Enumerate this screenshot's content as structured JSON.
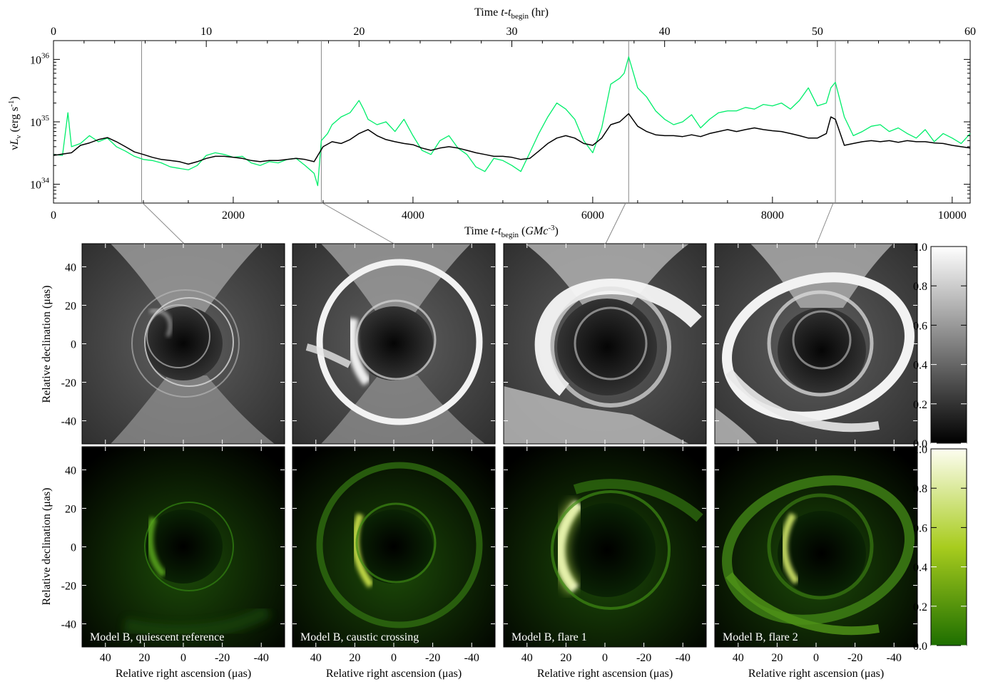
{
  "lightcurve": {
    "xlabel_bottom": {
      "pre": "Time ",
      "t": "t",
      "dash": "-",
      "tb": "t",
      "sub": "begin",
      "post": " (",
      "unit": "GMc",
      "sup": "-3",
      "close": ")"
    },
    "xlabel_top": {
      "pre": "Time ",
      "t": "t",
      "dash": "-",
      "tb": "t",
      "sub": "begin",
      "post": " (hr)"
    },
    "ylabel": {
      "nu": "ν",
      "L": "L",
      "sub": "ν",
      "unit": " (erg s",
      "sup": "-1",
      "close": ")"
    },
    "bottom_ticks": [
      "0",
      "2000",
      "4000",
      "6000",
      "8000",
      "10000"
    ],
    "top_ticks": [
      "0",
      "10",
      "20",
      "30",
      "40",
      "50",
      "60"
    ],
    "ytick_labels": [
      {
        "base": "10",
        "exp": "34"
      },
      {
        "base": "10",
        "exp": "35"
      },
      {
        "base": "10",
        "exp": "36"
      }
    ]
  },
  "panels": {
    "titles": [
      "Model B, quiescent reference",
      "Model B, caustic crossing",
      "Model B, flare 1",
      "Model B, flare 2"
    ],
    "ylabel": "Relative declination (μas)",
    "xlabel": "Relative right ascension (μas)",
    "ticks": [
      "40",
      "20",
      "0",
      "-20",
      "-40"
    ]
  },
  "colorbars": {
    "ticks": [
      "0.0",
      "0.2",
      "0.4",
      "0.6",
      "0.8",
      "1.0"
    ],
    "gray": {
      "low": "#000000",
      "high": "#ffffff"
    },
    "green": {
      "low": "#1e6e00",
      "mid": "#a8cc1e",
      "high": "#fdfdf0"
    }
  },
  "colors": {
    "green_curve": "#00ee6a",
    "black_curve": "#000000",
    "marker_line": "#888888"
  },
  "chart_data": {
    "type": "line",
    "xlabel": "Time t-t_begin (GMc^-3)",
    "x2label": "Time t-t_begin (hr)",
    "ylabel": "νL_ν (erg s^-1)",
    "xlim": [
      0,
      10200
    ],
    "x2lim": [
      0,
      60
    ],
    "ylim": [
      5e+33,
      2e+36
    ],
    "yscale": "log",
    "markers": [
      980,
      2980,
      6400,
      8700
    ],
    "series": [
      {
        "color": "#00ee6a",
        "x": [
          0,
          100,
          160,
          200,
          300,
          400,
          500,
          600,
          700,
          800,
          900,
          1000,
          1100,
          1200,
          1300,
          1400,
          1500,
          1600,
          1700,
          1800,
          1900,
          2000,
          2100,
          2200,
          2300,
          2400,
          2500,
          2600,
          2700,
          2800,
          2900,
          2940,
          2980,
          3050,
          3100,
          3200,
          3300,
          3400,
          3450,
          3500,
          3600,
          3700,
          3800,
          3900,
          4000,
          4100,
          4200,
          4300,
          4400,
          4500,
          4600,
          4700,
          4800,
          4900,
          5000,
          5100,
          5200,
          5300,
          5400,
          5500,
          5600,
          5700,
          5800,
          5900,
          6000,
          6100,
          6200,
          6300,
          6350,
          6400,
          6500,
          6600,
          6700,
          6800,
          6900,
          7000,
          7100,
          7200,
          7300,
          7400,
          7500,
          7600,
          7700,
          7800,
          7900,
          8000,
          8100,
          8200,
          8300,
          8400,
          8500,
          8600,
          8650,
          8700,
          8800,
          8900,
          9000,
          9100,
          9200,
          9300,
          9400,
          9500,
          9600,
          9700,
          9800,
          9900,
          10000,
          10100,
          10200
        ],
        "y": [
          3e+34,
          2.9e+34,
          1.4e+35,
          4e+34,
          4.5e+34,
          6e+34,
          4.8e+34,
          5.5e+34,
          4e+34,
          3.4e+34,
          2.8e+34,
          2.5e+34,
          2.4e+34,
          2.2e+34,
          1.9e+34,
          1.8e+34,
          1.7e+34,
          2e+34,
          2.9e+34,
          3.2e+34,
          3e+34,
          2.7e+34,
          2.8e+34,
          2.2e+34,
          2e+34,
          2.3e+34,
          2.2e+34,
          2.5e+34,
          2.6e+34,
          2e+34,
          1.5e+34,
          9.5e+33,
          5e+34,
          6.5e+34,
          9e+34,
          1.2e+35,
          1.4e+35,
          2.2e+35,
          1.6e+35,
          1.1e+35,
          9e+34,
          1e+35,
          7e+34,
          1.1e+35,
          6e+34,
          3.5e+34,
          3e+34,
          5e+34,
          6e+34,
          3.8e+34,
          3e+34,
          1.9e+34,
          1.6e+34,
          2.6e+34,
          2.4e+34,
          2e+34,
          1.6e+34,
          3.2e+34,
          6.5e+34,
          1.2e+35,
          2e+35,
          1.6e+35,
          1.1e+35,
          5e+34,
          3.2e+34,
          8e+34,
          4e+35,
          5e+35,
          6e+35,
          1.1e+36,
          3.5e+35,
          2.5e+35,
          1.5e+35,
          1.1e+35,
          9e+34,
          1e+35,
          1.3e+35,
          8e+34,
          1.1e+35,
          1.4e+35,
          1.5e+35,
          1.5e+35,
          1.7e+35,
          1.6e+35,
          1.9e+35,
          1.8e+35,
          2e+35,
          1.6e+35,
          2.2e+35,
          3.5e+35,
          1.8e+35,
          2e+35,
          3.5e+35,
          4.3e+35,
          1.2e+35,
          6e+34,
          7e+34,
          8.5e+34,
          9e+34,
          7e+34,
          8e+34,
          6.5e+34,
          5.5e+34,
          7.5e+34,
          4.8e+34,
          6.5e+34,
          5.5e+34,
          4.5e+34,
          6.5e+34
        ]
      },
      {
        "color": "#000000",
        "x": [
          0,
          200,
          300,
          400,
          500,
          600,
          700,
          800,
          900,
          1000,
          1100,
          1200,
          1300,
          1400,
          1500,
          1600,
          1700,
          1800,
          1900,
          2000,
          2100,
          2200,
          2300,
          2400,
          2500,
          2600,
          2700,
          2800,
          2900,
          3000,
          3100,
          3200,
          3300,
          3400,
          3500,
          3600,
          3700,
          3800,
          3900,
          4000,
          4100,
          4200,
          4300,
          4400,
          4500,
          4600,
          4700,
          4800,
          4900,
          5000,
          5100,
          5200,
          5300,
          5400,
          5500,
          5600,
          5700,
          5800,
          5900,
          6000,
          6100,
          6200,
          6300,
          6400,
          6500,
          6600,
          6700,
          6800,
          6900,
          7000,
          7100,
          7200,
          7300,
          7400,
          7500,
          7600,
          7700,
          7800,
          7900,
          8000,
          8100,
          8200,
          8300,
          8400,
          8500,
          8600,
          8650,
          8700,
          8800,
          8900,
          9000,
          9100,
          9200,
          9300,
          9400,
          9500,
          9600,
          9700,
          9800,
          9900,
          10000,
          10100,
          10200
        ],
        "y": [
          2.9e+34,
          3.2e+34,
          4.2e+34,
          4.6e+34,
          5.2e+34,
          5.6e+34,
          4.8e+34,
          4e+34,
          3.3e+34,
          3e+34,
          2.7e+34,
          2.5e+34,
          2.4e+34,
          2.3e+34,
          2.1e+34,
          2.3e+34,
          2.6e+34,
          2.8e+34,
          2.8e+34,
          2.7e+34,
          2.6e+34,
          2.4e+34,
          2.3e+34,
          2.4e+34,
          2.4e+34,
          2.5e+34,
          2.6e+34,
          2.5e+34,
          2.3e+34,
          4e+34,
          4.8e+34,
          4.5e+34,
          5.2e+34,
          6.5e+34,
          7.5e+34,
          6e+34,
          5.2e+34,
          4.8e+34,
          4.5e+34,
          4.3e+34,
          3.8e+34,
          3.5e+34,
          3.8e+34,
          4e+34,
          3.8e+34,
          3.5e+34,
          3.2e+34,
          3e+34,
          2.8e+34,
          2.8e+34,
          2.7e+34,
          2.5e+34,
          2.6e+34,
          3.4e+34,
          4.5e+34,
          5.5e+34,
          6e+34,
          5.5e+34,
          4.5e+34,
          4.2e+34,
          5.5e+34,
          9e+34,
          1e+35,
          1.35e+35,
          8.5e+34,
          7e+34,
          6.2e+34,
          6e+34,
          6e+34,
          5.8e+34,
          6.2e+34,
          5.8e+34,
          6.5e+34,
          7e+34,
          7.5e+34,
          7e+34,
          7.5e+34,
          8e+34,
          7.5e+34,
          7.2e+34,
          7e+34,
          6.5e+34,
          6e+34,
          5.5e+34,
          5.5e+34,
          6.5e+34,
          1.2e+35,
          1.1e+35,
          4.2e+34,
          4.5e+34,
          4.8e+34,
          5e+34,
          4.8e+34,
          5e+34,
          4.7e+34,
          5e+34,
          4.8e+34,
          4.8e+34,
          4.6e+34,
          4.5e+34,
          4.2e+34,
          4e+34,
          3.8e+34
        ]
      }
    ]
  }
}
